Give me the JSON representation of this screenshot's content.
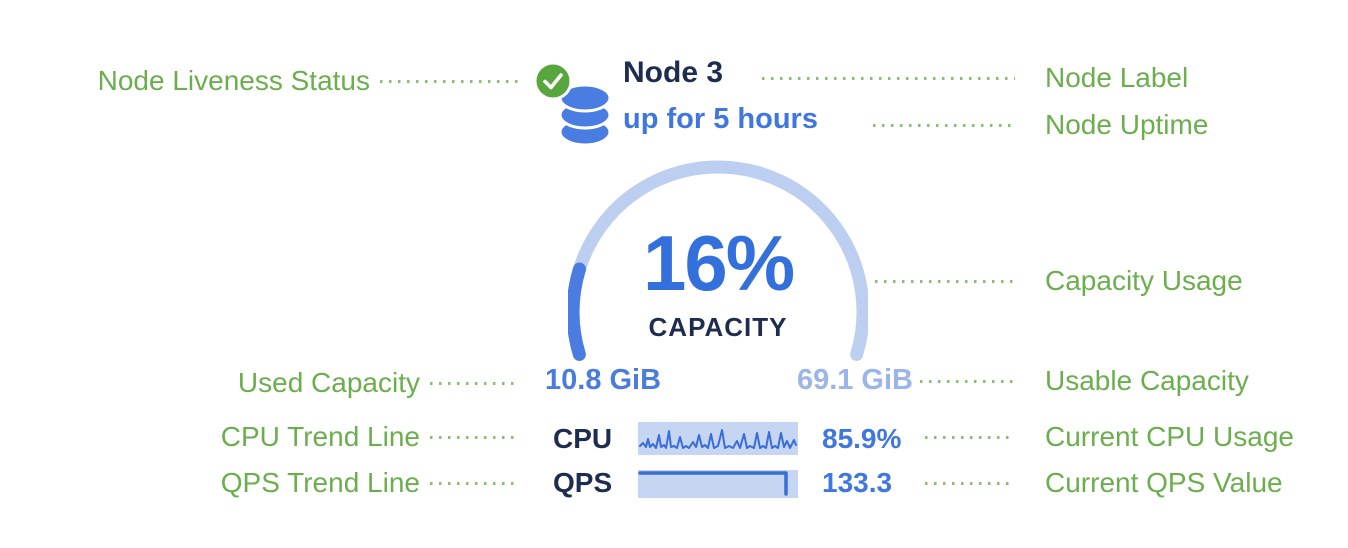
{
  "node": {
    "label": "Node 3",
    "uptime": "up for 5 hours",
    "status": "live",
    "status_icon": "check-circle-icon",
    "node_icon": "database-icon"
  },
  "gauge": {
    "percent": "16%",
    "percent_value": 16,
    "caption": "CAPACITY",
    "used_capacity": "10.8 GiB",
    "usable_capacity": "69.1 GiB"
  },
  "metrics": {
    "cpu": {
      "label": "CPU",
      "value": "85.9%"
    },
    "qps": {
      "label": "QPS",
      "value": "133.3"
    }
  },
  "sparklines": {
    "cpu_points": [
      [
        2,
        24
      ],
      [
        5,
        21
      ],
      [
        8,
        25
      ],
      [
        10,
        17
      ],
      [
        12,
        25
      ],
      [
        15,
        22
      ],
      [
        18,
        26
      ],
      [
        21,
        13
      ],
      [
        23,
        25
      ],
      [
        26,
        23
      ],
      [
        28,
        26
      ],
      [
        31,
        9
      ],
      [
        33,
        25
      ],
      [
        36,
        24
      ],
      [
        39,
        26
      ],
      [
        42,
        15
      ],
      [
        45,
        26
      ],
      [
        48,
        24
      ],
      [
        51,
        26
      ],
      [
        55,
        20
      ],
      [
        58,
        25
      ],
      [
        61,
        13
      ],
      [
        64,
        25
      ],
      [
        67,
        23
      ],
      [
        70,
        26
      ],
      [
        73,
        12
      ],
      [
        76,
        26
      ],
      [
        80,
        24
      ],
      [
        84,
        8
      ],
      [
        87,
        26
      ],
      [
        91,
        24
      ],
      [
        95,
        26
      ],
      [
        99,
        19
      ],
      [
        102,
        26
      ],
      [
        106,
        12
      ],
      [
        109,
        26
      ],
      [
        112,
        24
      ],
      [
        116,
        26
      ],
      [
        119,
        11
      ],
      [
        122,
        26
      ],
      [
        125,
        24
      ],
      [
        128,
        26
      ],
      [
        131,
        10
      ],
      [
        134,
        26
      ],
      [
        137,
        24
      ],
      [
        140,
        26
      ],
      [
        143,
        11
      ],
      [
        146,
        25
      ],
      [
        149,
        19
      ],
      [
        152,
        26
      ],
      [
        156,
        18
      ],
      [
        158,
        23
      ]
    ],
    "qps_points": [
      [
        2,
        5
      ],
      [
        148,
        5
      ],
      [
        148,
        26
      ]
    ]
  },
  "annotations": {
    "node_liveness_status": "Node Liveness Status",
    "node_label": "Node Label",
    "node_uptime": "Node Uptime",
    "capacity_usage": "Capacity Usage",
    "used_capacity": "Used Capacity",
    "usable_capacity": "Usable Capacity",
    "cpu_trend_line": "CPU Trend Line",
    "current_cpu_usage": "Current CPU Usage",
    "qps_trend_line": "QPS Trend Line",
    "current_qps_value": "Current QPS Value"
  },
  "colors": {
    "annotation_green": "#6CAE4E",
    "status_badge_green": "#58A63E",
    "navy_text": "#1E2C50",
    "primary_blue": "#4077DF",
    "gauge_track": "#BCCFF0",
    "gauge_fill": "#4A7CE2",
    "usable_capacity_blue": "#9BB5E9",
    "sparkline_bg": "#C5D5F2",
    "sparkline_line": "#3A6ED5"
  }
}
